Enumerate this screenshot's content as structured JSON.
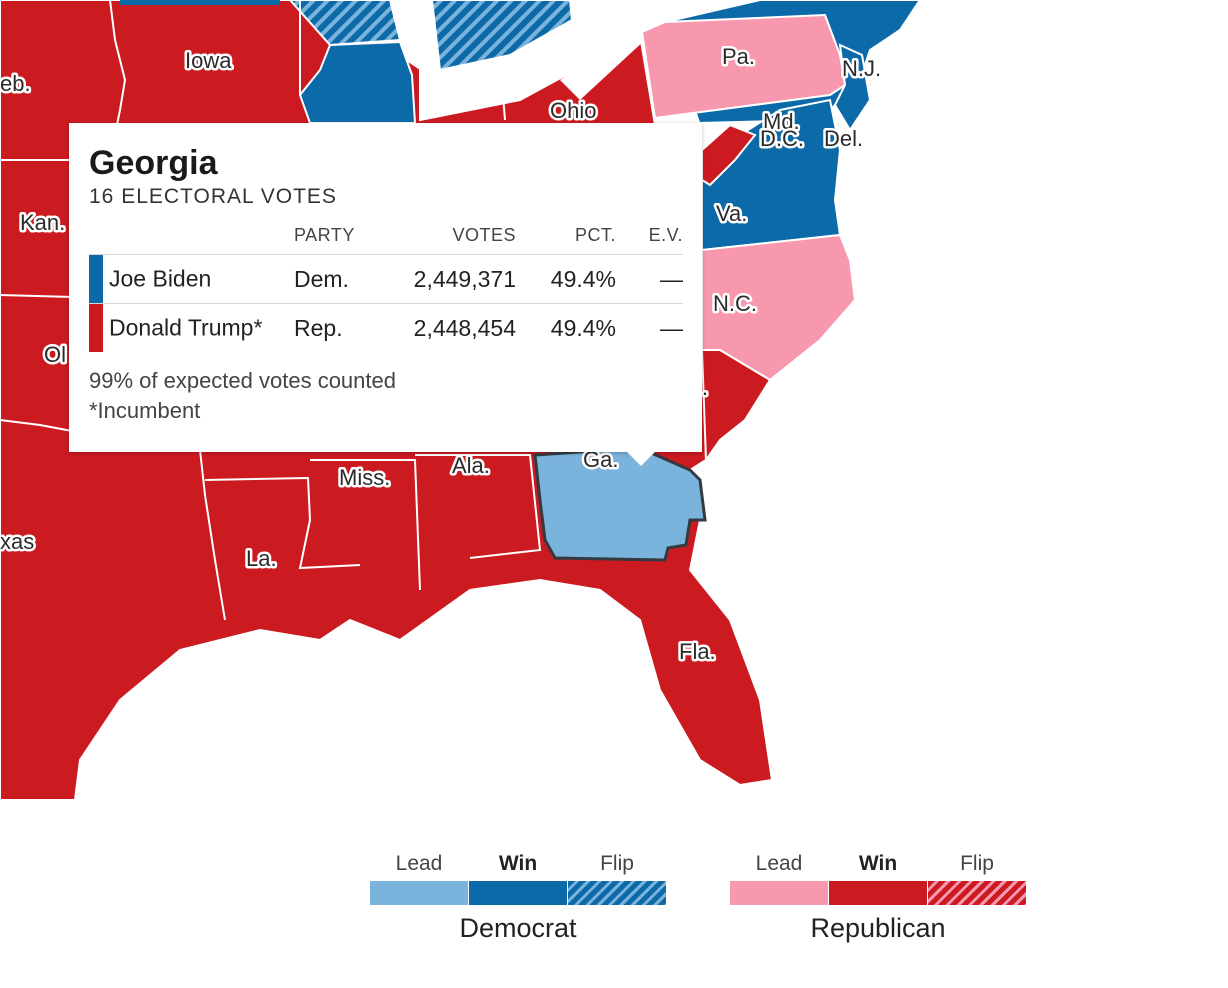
{
  "map": {
    "colors": {
      "dem_lead": "#7ab3db",
      "dem_win": "#0d6aa8",
      "dem_flip_base": "#0d6aa8",
      "dem_flip_stripe": "#7ab3db",
      "rep_lead": "#f798ae",
      "rep_win": "#cc1a21",
      "rep_flip_base": "#cc1a21",
      "rep_flip_stripe": "#f798ae",
      "border": "#ffffff",
      "highlight_border": "#333a40"
    },
    "labels": {
      "neb": "eb.",
      "iowa": "Iowa",
      "ohio": "Ohio",
      "pa": "Pa.",
      "nj": "N.J.",
      "md": "Md.",
      "dc": "D.C.",
      "del": "Del.",
      "kan": "Kan.",
      "va": "Va.",
      "nc": "N.C.",
      "okla": "Ol",
      "sc": ".",
      "texas": "xas",
      "la": "La.",
      "miss": "Miss.",
      "ala": "Ala.",
      "ga": "Ga.",
      "fla": "Fla."
    }
  },
  "tooltip": {
    "state": "Georgia",
    "electoral_votes": "16 ELECTORAL VOTES",
    "headers": {
      "party": "PARTY",
      "votes": "VOTES",
      "pct": "PCT.",
      "ev": "E.V."
    },
    "rows": [
      {
        "candidate": "Joe Biden",
        "party": "Dem.",
        "votes": "2,449,371",
        "pct": "49.4%",
        "ev": "—",
        "color": "#0d6aa8"
      },
      {
        "candidate": "Donald Trump*",
        "party": "Rep.",
        "votes": "2,448,454",
        "pct": "49.4%",
        "ev": "—",
        "color": "#cc1a21"
      }
    ],
    "footnote_counted": "99% of expected votes counted",
    "footnote_incumbent": "*Incumbent"
  },
  "legend": {
    "democrat": {
      "name": "Democrat",
      "lead": "Lead",
      "win": "Win",
      "flip": "Flip"
    },
    "republican": {
      "name": "Republican",
      "lead": "Lead",
      "win": "Win",
      "flip": "Flip"
    }
  }
}
